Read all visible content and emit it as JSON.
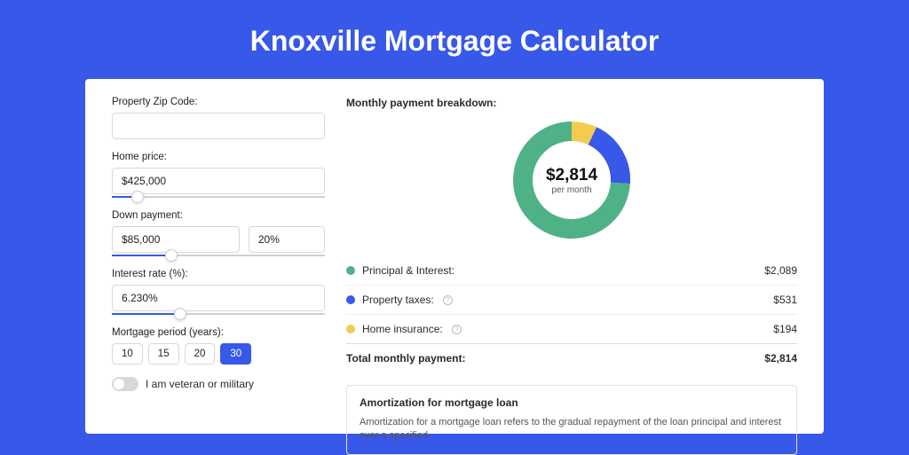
{
  "page": {
    "title": "Knoxville Mortgage Calculator",
    "background_color": "#3858e9"
  },
  "form": {
    "zip": {
      "label": "Property Zip Code:",
      "value": ""
    },
    "home_price": {
      "label": "Home price:",
      "value": "$425,000",
      "slider_pct": 12
    },
    "down_payment": {
      "label": "Down payment:",
      "amount": "$85,000",
      "percent": "20%",
      "slider_pct": 28
    },
    "interest_rate": {
      "label": "Interest rate (%):",
      "value": "6.230%",
      "slider_pct": 32
    },
    "period": {
      "label": "Mortgage period (years):",
      "options": [
        "10",
        "15",
        "20",
        "30"
      ],
      "selected": "30"
    },
    "veteran": {
      "label": "I am veteran or military",
      "on": false
    }
  },
  "breakdown": {
    "title": "Monthly payment breakdown:",
    "center_amount": "$2,814",
    "center_sub": "per month",
    "items": [
      {
        "label": "Principal & Interest:",
        "value": "$2,089",
        "color": "#4fb286",
        "pct": 74,
        "info": false
      },
      {
        "label": "Property taxes:",
        "value": "$531",
        "color": "#3858e9",
        "pct": 19,
        "info": true
      },
      {
        "label": "Home insurance:",
        "value": "$194",
        "color": "#f3cc4e",
        "pct": 7,
        "info": true
      }
    ],
    "total": {
      "label": "Total monthly payment:",
      "value": "$2,814"
    }
  },
  "donut": {
    "radius": 55,
    "stroke": 22,
    "start_angle_deg": -90,
    "bg": "#ffffff"
  },
  "amortization": {
    "title": "Amortization for mortgage loan",
    "text": "Amortization for a mortgage loan refers to the gradual repayment of the loan principal and interest over a specified"
  }
}
